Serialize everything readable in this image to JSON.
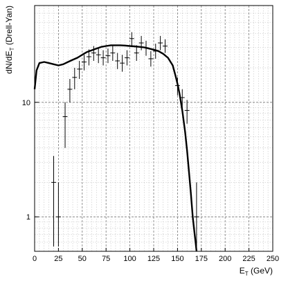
{
  "chart_data": {
    "type": "scatter",
    "title": "",
    "xlabel": "E",
    "xlabel_sub": "T",
    "xlabel_unit": " (GeV)",
    "ylabel": "dN/dE",
    "ylabel_sub": "T",
    "ylabel_tail": " (Drell-Yan)",
    "xlim": [
      0,
      250
    ],
    "ylim": [
      0.5,
      70
    ],
    "yscale": "log",
    "grid": true,
    "xticks": [
      0,
      25,
      50,
      75,
      100,
      125,
      150,
      175,
      200,
      225,
      250
    ],
    "yticks": [
      1,
      10
    ],
    "series": [
      {
        "kind": "points",
        "points": [
          {
            "x": 20,
            "y": 2.0,
            "ylo": 0.55,
            "yhi": 3.4,
            "xerr": 2.5
          },
          {
            "x": 25,
            "y": 1.0,
            "ylo": 0.55,
            "yhi": 2.0,
            "xerr": 2.5
          },
          {
            "x": 32,
            "y": 7.5,
            "ylo": 4.0,
            "yhi": 10.0,
            "xerr": 2.5
          },
          {
            "x": 37,
            "y": 13,
            "ylo": 10.0,
            "yhi": 16.0,
            "xerr": 2.5
          },
          {
            "x": 42,
            "y": 16.5,
            "ylo": 13.0,
            "yhi": 20.0,
            "xerr": 2.5
          },
          {
            "x": 47,
            "y": 19.5,
            "ylo": 16.0,
            "yhi": 23.0,
            "xerr": 2.5
          },
          {
            "x": 52,
            "y": 22.5,
            "ylo": 19.0,
            "yhi": 26.0,
            "xerr": 2.5
          },
          {
            "x": 57,
            "y": 25,
            "ylo": 21.0,
            "yhi": 29.0,
            "xerr": 2.5
          },
          {
            "x": 62,
            "y": 27,
            "ylo": 23.0,
            "yhi": 31.0,
            "xerr": 2.5
          },
          {
            "x": 67,
            "y": 26,
            "ylo": 22.0,
            "yhi": 30.0,
            "xerr": 2.5
          },
          {
            "x": 72,
            "y": 24.5,
            "ylo": 21.0,
            "yhi": 28.5,
            "xerr": 2.5
          },
          {
            "x": 77,
            "y": 25.5,
            "ylo": 22.0,
            "yhi": 29.5,
            "xerr": 2.5
          },
          {
            "x": 82,
            "y": 27,
            "ylo": 23.0,
            "yhi": 31.5,
            "xerr": 2.5
          },
          {
            "x": 87,
            "y": 23,
            "ylo": 19.5,
            "yhi": 27.0,
            "xerr": 2.5
          },
          {
            "x": 92,
            "y": 22,
            "ylo": 18.5,
            "yhi": 26.0,
            "xerr": 2.5
          },
          {
            "x": 97,
            "y": 24.5,
            "ylo": 21.0,
            "yhi": 28.5,
            "xerr": 2.5
          },
          {
            "x": 102,
            "y": 36,
            "ylo": 31.0,
            "yhi": 41.0,
            "xerr": 2.5
          },
          {
            "x": 107,
            "y": 27,
            "ylo": 23.0,
            "yhi": 31.5,
            "xerr": 2.5
          },
          {
            "x": 112,
            "y": 33,
            "ylo": 28.5,
            "yhi": 38.0,
            "xerr": 2.5
          },
          {
            "x": 117,
            "y": 30,
            "ylo": 25.5,
            "yhi": 34.5,
            "xerr": 2.5
          },
          {
            "x": 122,
            "y": 24,
            "ylo": 20.5,
            "yhi": 28.0,
            "xerr": 2.5
          },
          {
            "x": 127,
            "y": 28,
            "ylo": 24.0,
            "yhi": 32.5,
            "xerr": 2.5
          },
          {
            "x": 132,
            "y": 33,
            "ylo": 28.5,
            "yhi": 38.0,
            "xerr": 2.5
          },
          {
            "x": 137,
            "y": 31,
            "ylo": 27.0,
            "yhi": 35.5,
            "xerr": 2.5
          },
          {
            "x": 150,
            "y": 14,
            "ylo": 11.5,
            "yhi": 16.5,
            "xerr": 2.5
          },
          {
            "x": 155,
            "y": 11,
            "ylo": 9.0,
            "yhi": 13.0,
            "xerr": 2.5
          },
          {
            "x": 160,
            "y": 8.5,
            "ylo": 6.5,
            "yhi": 10.5,
            "xerr": 2.5
          },
          {
            "x": 170,
            "y": 1.0,
            "ylo": 0.55,
            "yhi": 2.0,
            "xerr": 2.5
          }
        ]
      },
      {
        "kind": "curve",
        "x": [
          0,
          2,
          5,
          10,
          15,
          20,
          25,
          30,
          35,
          40,
          45,
          50,
          55,
          60,
          65,
          70,
          75,
          80,
          85,
          90,
          95,
          100,
          105,
          110,
          115,
          120,
          125,
          130,
          135,
          140,
          145,
          148,
          150,
          152,
          155,
          158,
          160,
          162,
          164,
          166,
          168,
          169,
          170
        ],
        "y": [
          13,
          19,
          22,
          22.5,
          22,
          21.5,
          21,
          21.5,
          22.5,
          23.5,
          24.5,
          26,
          27.5,
          28.5,
          29.5,
          30.5,
          31,
          31.5,
          31.5,
          31.5,
          31.3,
          31,
          30.8,
          30.5,
          30.2,
          29.5,
          28.8,
          28,
          26.5,
          24.5,
          21,
          17,
          14.5,
          12,
          8.5,
          5.5,
          3.8,
          2.5,
          1.6,
          1.0,
          0.7,
          0.6,
          0.5
        ]
      }
    ]
  }
}
